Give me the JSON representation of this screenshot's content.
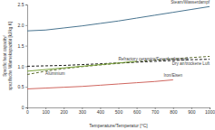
{
  "chart_data": {
    "type": "line",
    "x_label": "Temperature/Temperatur [°C]",
    "y_label": [
      "Specific heat capacity/",
      "spezifische Wärmekapazität [kJ/kg K]"
    ],
    "x": [
      0,
      100,
      200,
      300,
      400,
      500,
      600,
      700,
      800,
      900,
      1000
    ],
    "xlim": [
      0,
      1000
    ],
    "xticks": [
      0,
      100,
      200,
      300,
      400,
      500,
      600,
      700,
      800,
      900,
      1000
    ],
    "ylim": [
      0,
      2.5
    ],
    "yticks": [
      0,
      0.5,
      {
        "value": 1,
        "label": "1.0"
      },
      1.5,
      {
        "value": 2,
        "label": "2.0"
      },
      2.5
    ],
    "grid": false,
    "series": [
      {
        "name": "Steam/Wasserdampf",
        "color": "#4a7590",
        "line_style": "solid",
        "values": [
          1.86,
          1.88,
          1.93,
          1.98,
          2.04,
          2.1,
          2.17,
          2.24,
          2.31,
          2.38,
          2.45
        ]
      },
      {
        "name": "Refractory ceramics/Feuerfestkeramik",
        "color": "#5c6b2e",
        "line_style": "dashed",
        "values": [
          0.8,
          0.88,
          0.94,
          0.99,
          1.03,
          1.07,
          1.11,
          1.15,
          1.18,
          1.21,
          1.24
        ]
      },
      {
        "name": "Dry air/trockene Luft",
        "color": "#1a1a1a",
        "line_style": "dashed",
        "values": [
          1.0,
          1.01,
          1.02,
          1.04,
          1.06,
          1.08,
          1.1,
          1.12,
          1.14,
          1.16,
          1.17
        ]
      },
      {
        "name": "Aluminium",
        "color": "#7aa33a",
        "line_style": "solid",
        "values": [
          0.88,
          0.92,
          0.96,
          1.0,
          1.04,
          1.08,
          1.12,
          null,
          null,
          null,
          null
        ]
      },
      {
        "name": "Iron/Eisen",
        "color": "#d0665f",
        "line_style": "solid",
        "values": [
          0.45,
          0.47,
          0.49,
          0.51,
          0.54,
          0.57,
          0.6,
          0.63,
          0.67,
          null,
          null
        ]
      }
    ]
  }
}
